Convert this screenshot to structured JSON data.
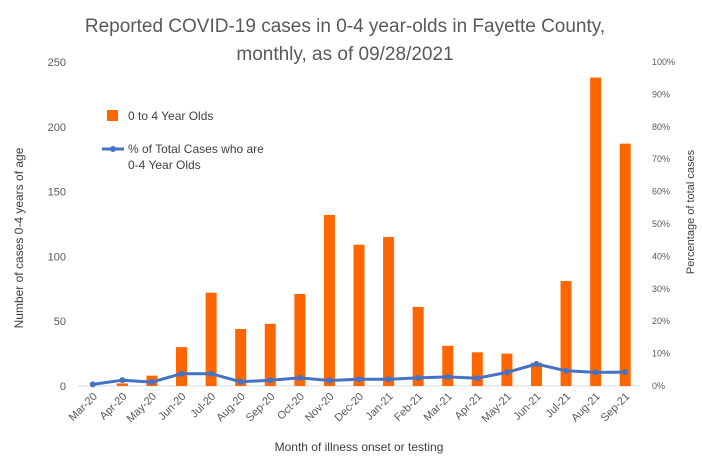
{
  "chart_data": {
    "type": "bar",
    "title_lines": [
      "Reported COVID-19 cases in 0-4 year-olds in Fayette County,",
      "monthly, as of 09/28/2021"
    ],
    "xlabel": "Month of illness onset or testing",
    "ylabel": "Number of cases 0-4 years of age",
    "y2label": "Percentage of total cases",
    "ylim": [
      0,
      250
    ],
    "yticks": [
      "0",
      "50",
      "100",
      "150",
      "200",
      "250"
    ],
    "y2lim": [
      0,
      100
    ],
    "y2ticks": [
      "0%",
      "10%",
      "20%",
      "30%",
      "40%",
      "50%",
      "60%",
      "70%",
      "80%",
      "90%",
      "100%"
    ],
    "categories": [
      "Mar-20",
      "Apr-20",
      "May-20",
      "Jun-20",
      "Jul-20",
      "Aug-20",
      "Sep-20",
      "Oct-20",
      "Nov-20",
      "Dec-20",
      "Jan-21",
      "Feb-21",
      "Mar-21",
      "Apr-21",
      "May-21",
      "Jun-21",
      "Jul-21",
      "Aug-21",
      "Sep-21"
    ],
    "series": [
      {
        "name": "0 to 4 Year Olds",
        "type": "bar",
        "axis": "left",
        "color": "#FF6600",
        "values": [
          0,
          2,
          8,
          30,
          72,
          44,
          48,
          71,
          132,
          109,
          115,
          61,
          31,
          26,
          25,
          18,
          81,
          238,
          187
        ]
      },
      {
        "name_lines": [
          "% of Total Cases who are",
          "0-4 Year Olds"
        ],
        "type": "line",
        "axis": "right",
        "color": "#4472C4",
        "values": [
          0.5,
          1.8,
          1.2,
          3.8,
          3.8,
          1.3,
          1.8,
          2.5,
          1.7,
          2.1,
          2.1,
          2.5,
          2.8,
          2.4,
          4.2,
          6.8,
          4.7,
          4.2,
          4.3
        ]
      }
    ],
    "grid": false,
    "legend_position": "upper-left inside plot"
  }
}
